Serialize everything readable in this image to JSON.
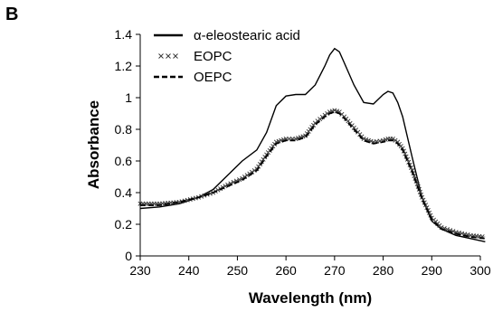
{
  "panel_label": "B",
  "chart_data": {
    "type": "line",
    "xlabel": "Wavelength (nm)",
    "ylabel": "Absorbance",
    "xlim": [
      230,
      300
    ],
    "ylim": [
      0,
      1.4
    ],
    "xticks": [
      230,
      240,
      250,
      260,
      270,
      280,
      290,
      300
    ],
    "yticks": [
      0,
      0.2,
      0.4,
      0.6,
      0.8,
      1,
      1.2,
      1.4
    ],
    "xtick_labels": [
      "230",
      "240",
      "250",
      "260",
      "270",
      "280",
      "290",
      "300"
    ],
    "ytick_labels": [
      "0",
      "0.2",
      "0.4",
      "0.6",
      "0.8",
      "1",
      "1.2",
      "1.4"
    ],
    "grid": false,
    "legend_position": "top-left",
    "series": [
      {
        "name": "α-eleostearic acid",
        "style": "solid",
        "color": "#000000",
        "x": [
          230,
          234,
          238,
          242,
          245,
          248,
          251,
          254,
          256,
          258,
          260,
          262,
          264,
          266,
          268,
          269,
          270,
          271,
          272,
          274,
          276,
          278,
          280,
          281,
          282,
          283,
          284,
          286,
          288,
          290,
          292,
          295,
          298,
          301
        ],
        "y": [
          0.3,
          0.31,
          0.33,
          0.37,
          0.42,
          0.51,
          0.6,
          0.67,
          0.78,
          0.95,
          1.01,
          1.02,
          1.02,
          1.08,
          1.2,
          1.27,
          1.31,
          1.29,
          1.22,
          1.08,
          0.97,
          0.96,
          1.02,
          1.04,
          1.03,
          0.97,
          0.88,
          0.62,
          0.37,
          0.22,
          0.17,
          0.13,
          0.11,
          0.09
        ]
      },
      {
        "name": "EOPC",
        "style": "cross-markers",
        "color": "#000000",
        "x": [
          230,
          234,
          238,
          242,
          245,
          248,
          251,
          254,
          256,
          258,
          260,
          262,
          264,
          266,
          268,
          269,
          270,
          271,
          272,
          274,
          276,
          278,
          280,
          281,
          282,
          283,
          284,
          286,
          288,
          290,
          292,
          295,
          298,
          301
        ],
        "y": [
          0.33,
          0.33,
          0.34,
          0.37,
          0.4,
          0.45,
          0.49,
          0.55,
          0.64,
          0.72,
          0.74,
          0.74,
          0.76,
          0.84,
          0.89,
          0.91,
          0.92,
          0.91,
          0.88,
          0.81,
          0.74,
          0.72,
          0.73,
          0.74,
          0.74,
          0.72,
          0.68,
          0.54,
          0.37,
          0.24,
          0.18,
          0.15,
          0.13,
          0.12
        ]
      },
      {
        "name": "OEPC",
        "style": "dashed",
        "color": "#000000",
        "x": [
          230,
          234,
          238,
          242,
          245,
          248,
          251,
          254,
          256,
          258,
          260,
          262,
          264,
          266,
          268,
          269,
          270,
          271,
          272,
          274,
          276,
          278,
          280,
          281,
          282,
          283,
          284,
          286,
          288,
          290,
          292,
          295,
          298,
          301
        ],
        "y": [
          0.32,
          0.32,
          0.34,
          0.37,
          0.4,
          0.44,
          0.48,
          0.54,
          0.63,
          0.71,
          0.73,
          0.73,
          0.75,
          0.83,
          0.88,
          0.9,
          0.91,
          0.9,
          0.87,
          0.8,
          0.73,
          0.71,
          0.72,
          0.73,
          0.73,
          0.71,
          0.67,
          0.53,
          0.36,
          0.23,
          0.17,
          0.14,
          0.12,
          0.11
        ]
      }
    ]
  }
}
